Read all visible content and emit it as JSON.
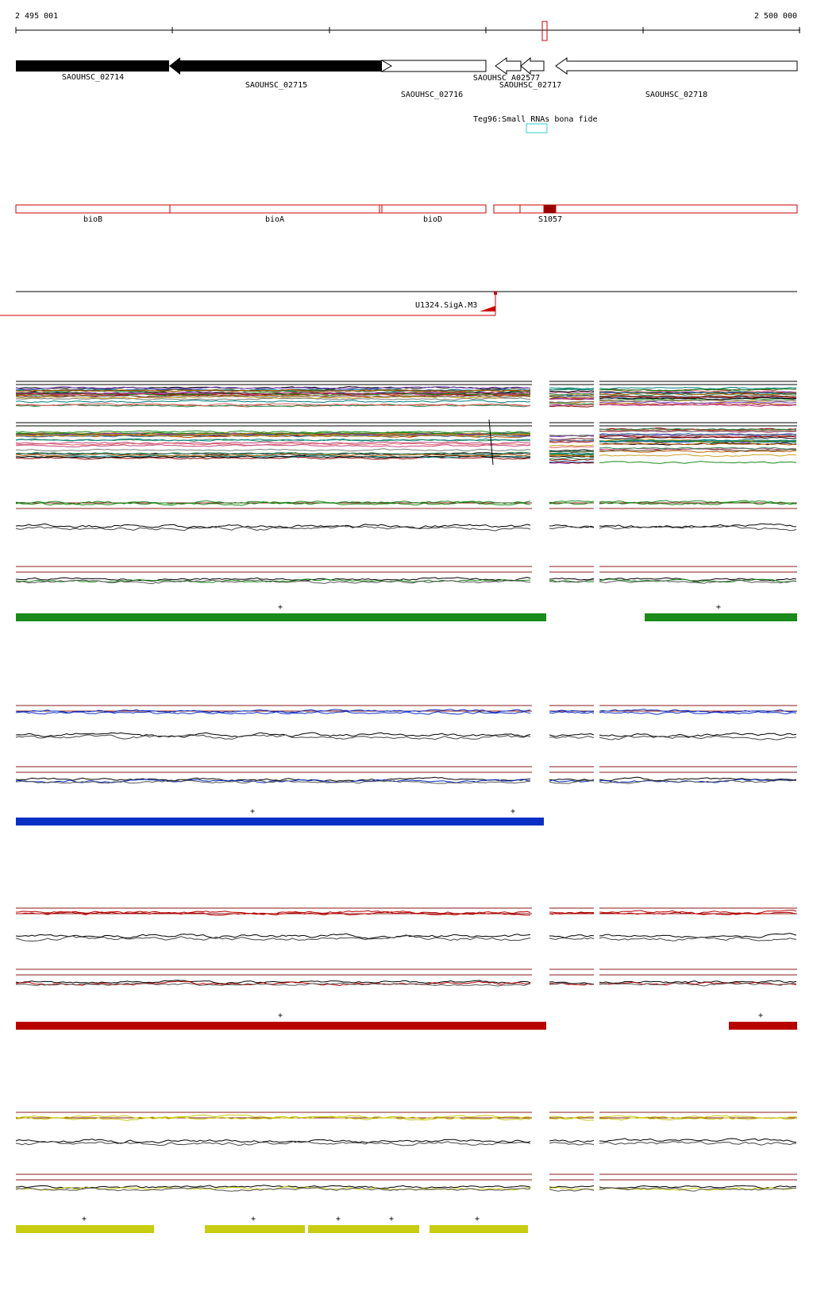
{
  "ruler": {
    "start_label": "2 495 001",
    "end_label": "2 500 000"
  },
  "genes": [
    {
      "id": "SAOUHSC_02714",
      "fill": "black"
    },
    {
      "id": "SAOUHSC_02715",
      "fill": "black"
    },
    {
      "id": "SAOUHSC_02716",
      "fill": "white"
    },
    {
      "id": "SAOUHSC_A02577",
      "fill": "white"
    },
    {
      "id": "SAOUHSC_02717",
      "fill": "white"
    },
    {
      "id": "SAOUHSC_02718",
      "fill": "white"
    }
  ],
  "small_rna": {
    "label": "Teg96:Small RNAs bona fide",
    "color": "#33cccc"
  },
  "operon_labels": [
    "bioB",
    "bioA",
    "bioD",
    "S1057"
  ],
  "promoter": {
    "label": "U1324.SigA.M3"
  },
  "colors": {
    "green": "#1a8a1a",
    "blue": "#0a2fc4",
    "red": "#b80000",
    "yellow": "#c8cc10",
    "outline_red": "#cc0000",
    "dark_red": "#990000"
  },
  "segment_marker": "+"
}
